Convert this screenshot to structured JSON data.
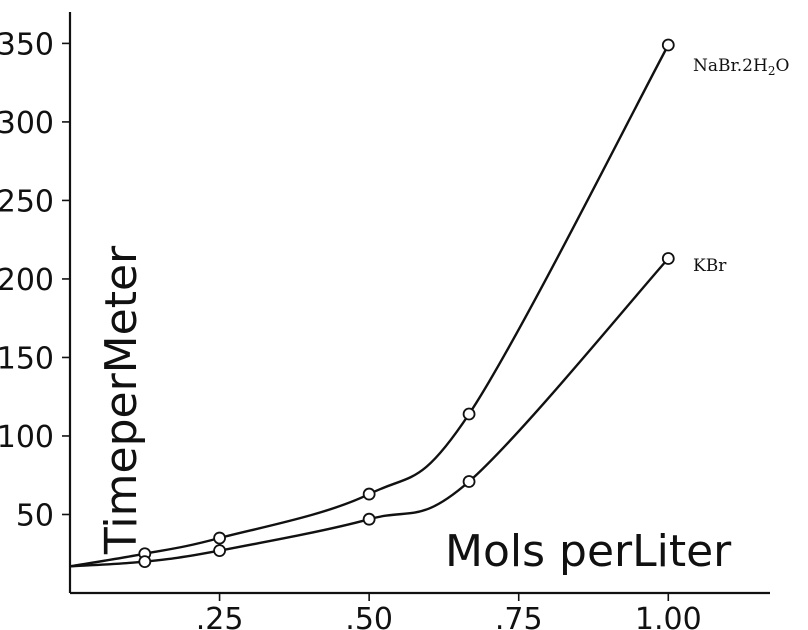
{
  "chart_data": {
    "type": "line",
    "title": "",
    "xlabel": "Mols perLiter",
    "ylabel": "TimeperMeter",
    "xlim": [
      0,
      1.17
    ],
    "ylim": [
      0,
      370
    ],
    "x_ticks": [
      0.25,
      0.5,
      0.75,
      1.0
    ],
    "x_tick_labels": [
      ".25",
      ".50",
      ".75",
      "1.00"
    ],
    "y_ticks": [
      50,
      100,
      150,
      200,
      250,
      300,
      350
    ],
    "y_tick_labels": [
      "50",
      "100",
      "150",
      "200",
      "250",
      "300",
      "350"
    ],
    "grid": false,
    "legend": "none",
    "curve_start": {
      "x": 0.0,
      "y": 17
    },
    "series": [
      {
        "name": "NaBr.2H₂O",
        "label_parts": {
          "base": "NaBr.2H",
          "sub": "2",
          "tail": "O"
        },
        "x": [
          0.125,
          0.25,
          0.5,
          0.667,
          1.0
        ],
        "y": [
          25,
          35,
          63,
          114,
          349
        ]
      },
      {
        "name": "KBr",
        "x": [
          0.125,
          0.25,
          0.5,
          0.667,
          1.0
        ],
        "y": [
          20,
          27,
          47,
          71,
          213
        ]
      }
    ]
  }
}
